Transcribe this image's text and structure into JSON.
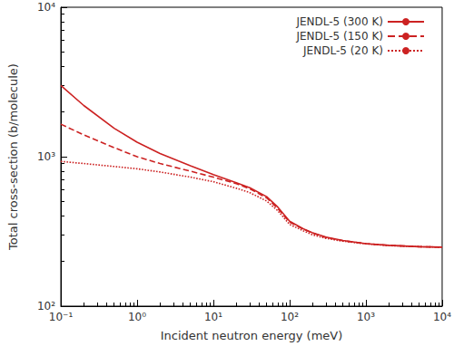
{
  "chart_data": {
    "type": "line",
    "x_label": "Incident neutron energy (meV)",
    "y_label": "Total cross-section (b/molecule)",
    "log": true,
    "grid": false,
    "legend": "upper right",
    "x": [
      0.1,
      0.2,
      0.5,
      1,
      2,
      5,
      10,
      20,
      30,
      50,
      70,
      100,
      150,
      200,
      300,
      500,
      1000,
      2000,
      5000,
      10000
    ],
    "series": [
      {
        "name": "JENDL-5 (300 K)",
        "color": "#cc2222",
        "line_style": "solid",
        "values": [
          3000,
          2200,
          1550,
          1250,
          1050,
          870,
          760,
          670,
          620,
          540,
          460,
          370,
          330,
          310,
          290,
          275,
          262,
          255,
          250,
          248
        ]
      },
      {
        "name": "JENDL-5 (150 K)",
        "color": "#cc2222",
        "line_style": "dashed",
        "values": [
          1650,
          1400,
          1150,
          1000,
          900,
          800,
          730,
          660,
          610,
          530,
          450,
          365,
          328,
          308,
          288,
          274,
          262,
          255,
          250,
          248
        ]
      },
      {
        "name": "JENDL-5 (20 K)",
        "color": "#cc2222",
        "line_style": "dotted",
        "values": [
          930,
          900,
          860,
          830,
          790,
          730,
          680,
          615,
          575,
          505,
          435,
          352,
          320,
          300,
          284,
          272,
          261,
          254,
          250,
          248
        ]
      }
    ],
    "xlim": [
      0.1,
      10000
    ],
    "xticks": [
      {
        "value": 0.1,
        "label": "10⁻¹"
      },
      {
        "value": 1,
        "label": "10⁰"
      },
      {
        "value": 10,
        "label": "10¹"
      },
      {
        "value": 100,
        "label": "10²"
      },
      {
        "value": 1000,
        "label": "10³"
      },
      {
        "value": 10000,
        "label": "10⁴"
      }
    ],
    "ylim": [
      100,
      10000
    ],
    "yticks": [
      {
        "value": 100,
        "label": "10²"
      },
      {
        "value": 1000,
        "label": "10³"
      },
      {
        "value": 10000,
        "label": "10⁴"
      }
    ]
  }
}
